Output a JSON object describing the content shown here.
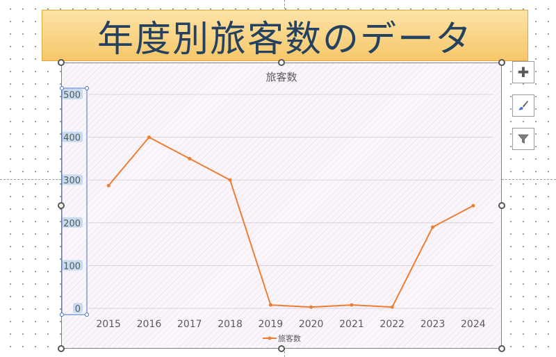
{
  "slide": {
    "title": "年度別旅客数のデータ"
  },
  "chart_data": {
    "type": "line",
    "title": "旅客数",
    "categories": [
      "2015",
      "2016",
      "2017",
      "2018",
      "2019",
      "2020",
      "2021",
      "2022",
      "2023",
      "2024"
    ],
    "series": [
      {
        "name": "旅客数",
        "values": [
          287,
          400,
          350,
          300,
          8,
          3,
          8,
          3,
          190,
          240
        ],
        "color": "#ed7d31"
      }
    ],
    "y_ticks": [
      0,
      100,
      200,
      300,
      400,
      500
    ],
    "ylim": [
      0,
      500
    ],
    "grid": true,
    "legend_position": "bottom",
    "plot_background": "#fbf6fb",
    "gridline_color": "#d9d2dc"
  },
  "chart_tools": {
    "add_elements": "add-icon",
    "styles": "brush-icon",
    "filters": "filter-icon"
  }
}
